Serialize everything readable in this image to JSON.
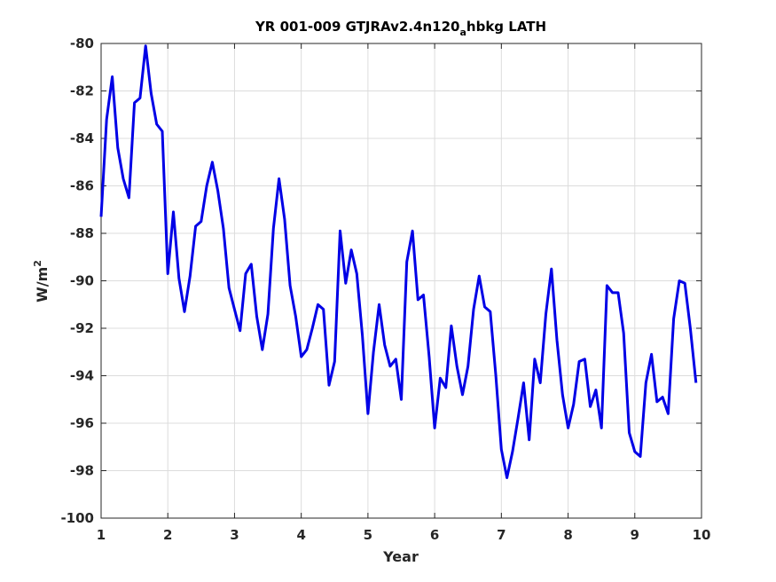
{
  "chart_data": {
    "type": "line",
    "title": "YR 001-009 GTJRAv2.4n120",
    "title_subscript": "a",
    "title_suffix": "hbkg LATH",
    "xlabel": "Year",
    "ylabel": "W/m",
    "ylabel_superscript": "2",
    "xlim": [
      1,
      10
    ],
    "ylim": [
      -100,
      -80
    ],
    "xticks": [
      "1",
      "2",
      "3",
      "4",
      "5",
      "6",
      "7",
      "8",
      "9",
      "10"
    ],
    "yticks": [
      "-80",
      "-82",
      "-84",
      "-86",
      "-88",
      "-90",
      "-92",
      "-94",
      "-96",
      "-98",
      "-100"
    ],
    "grid": true,
    "line_color": "#0000e6",
    "series": [
      {
        "x": [
          1.0,
          1.083,
          1.167,
          1.25,
          1.333,
          1.417,
          1.5,
          1.583,
          1.667,
          1.75,
          1.833,
          1.917,
          2.0,
          2.083,
          2.167,
          2.25,
          2.333,
          2.417,
          2.5,
          2.583,
          2.667,
          2.75,
          2.833,
          2.917,
          3.0,
          3.083,
          3.167,
          3.25,
          3.333,
          3.417,
          3.5,
          3.583,
          3.667,
          3.75,
          3.833,
          3.917,
          4.0,
          4.083,
          4.167,
          4.25,
          4.333,
          4.417,
          4.5,
          4.583,
          4.667,
          4.75,
          4.833,
          4.917,
          5.0,
          5.083,
          5.167,
          5.25,
          5.333,
          5.417,
          5.5,
          5.583,
          5.667,
          5.75,
          5.833,
          5.917,
          6.0,
          6.083,
          6.167,
          6.25,
          6.333,
          6.417,
          6.5,
          6.583,
          6.667,
          6.75,
          6.833,
          6.917,
          7.0,
          7.083,
          7.167,
          7.25,
          7.333,
          7.417,
          7.5,
          7.583,
          7.667,
          7.75,
          7.833,
          7.917,
          8.0,
          8.083,
          8.167,
          8.25,
          8.333,
          8.417,
          8.5,
          8.583,
          8.667,
          8.75,
          8.833,
          8.917,
          9.0,
          9.083,
          9.167,
          9.25,
          9.333,
          9.417,
          9.5,
          9.583,
          9.667,
          9.75,
          9.833,
          9.917
        ],
        "y": [
          -87.3,
          -83.2,
          -81.4,
          -84.4,
          -85.7,
          -86.5,
          -82.5,
          -82.3,
          -80.1,
          -82.1,
          -83.4,
          -83.7,
          -89.7,
          -87.1,
          -89.9,
          -91.3,
          -89.8,
          -87.7,
          -87.5,
          -86.0,
          -85.0,
          -86.2,
          -87.8,
          -90.3,
          -91.2,
          -92.1,
          -89.7,
          -89.3,
          -91.5,
          -92.9,
          -91.4,
          -87.8,
          -85.7,
          -87.4,
          -90.2,
          -91.5,
          -93.2,
          -92.9,
          -92.0,
          -91.0,
          -91.2,
          -94.4,
          -93.4,
          -87.9,
          -90.1,
          -88.7,
          -89.7,
          -92.3,
          -95.6,
          -93.0,
          -91.0,
          -92.7,
          -93.6,
          -93.3,
          -95.0,
          -89.2,
          -87.9,
          -90.8,
          -90.6,
          -93.2,
          -96.2,
          -94.1,
          -94.5,
          -91.9,
          -93.6,
          -94.8,
          -93.6,
          -91.2,
          -89.8,
          -91.1,
          -91.3,
          -94.0,
          -97.1,
          -98.3,
          -97.2,
          -95.8,
          -94.3,
          -96.7,
          -93.3,
          -94.3,
          -91.4,
          -89.5,
          -92.5,
          -94.8,
          -96.2,
          -95.2,
          -93.4,
          -93.3,
          -95.3,
          -94.6,
          -96.2,
          -90.2,
          -90.5,
          -90.5,
          -92.2,
          -96.4,
          -97.2,
          -97.4,
          -94.3,
          -93.1,
          -95.1,
          -94.9,
          -95.6,
          -91.6,
          -90.0,
          -90.1,
          -92.0,
          -94.3
        ]
      }
    ]
  }
}
